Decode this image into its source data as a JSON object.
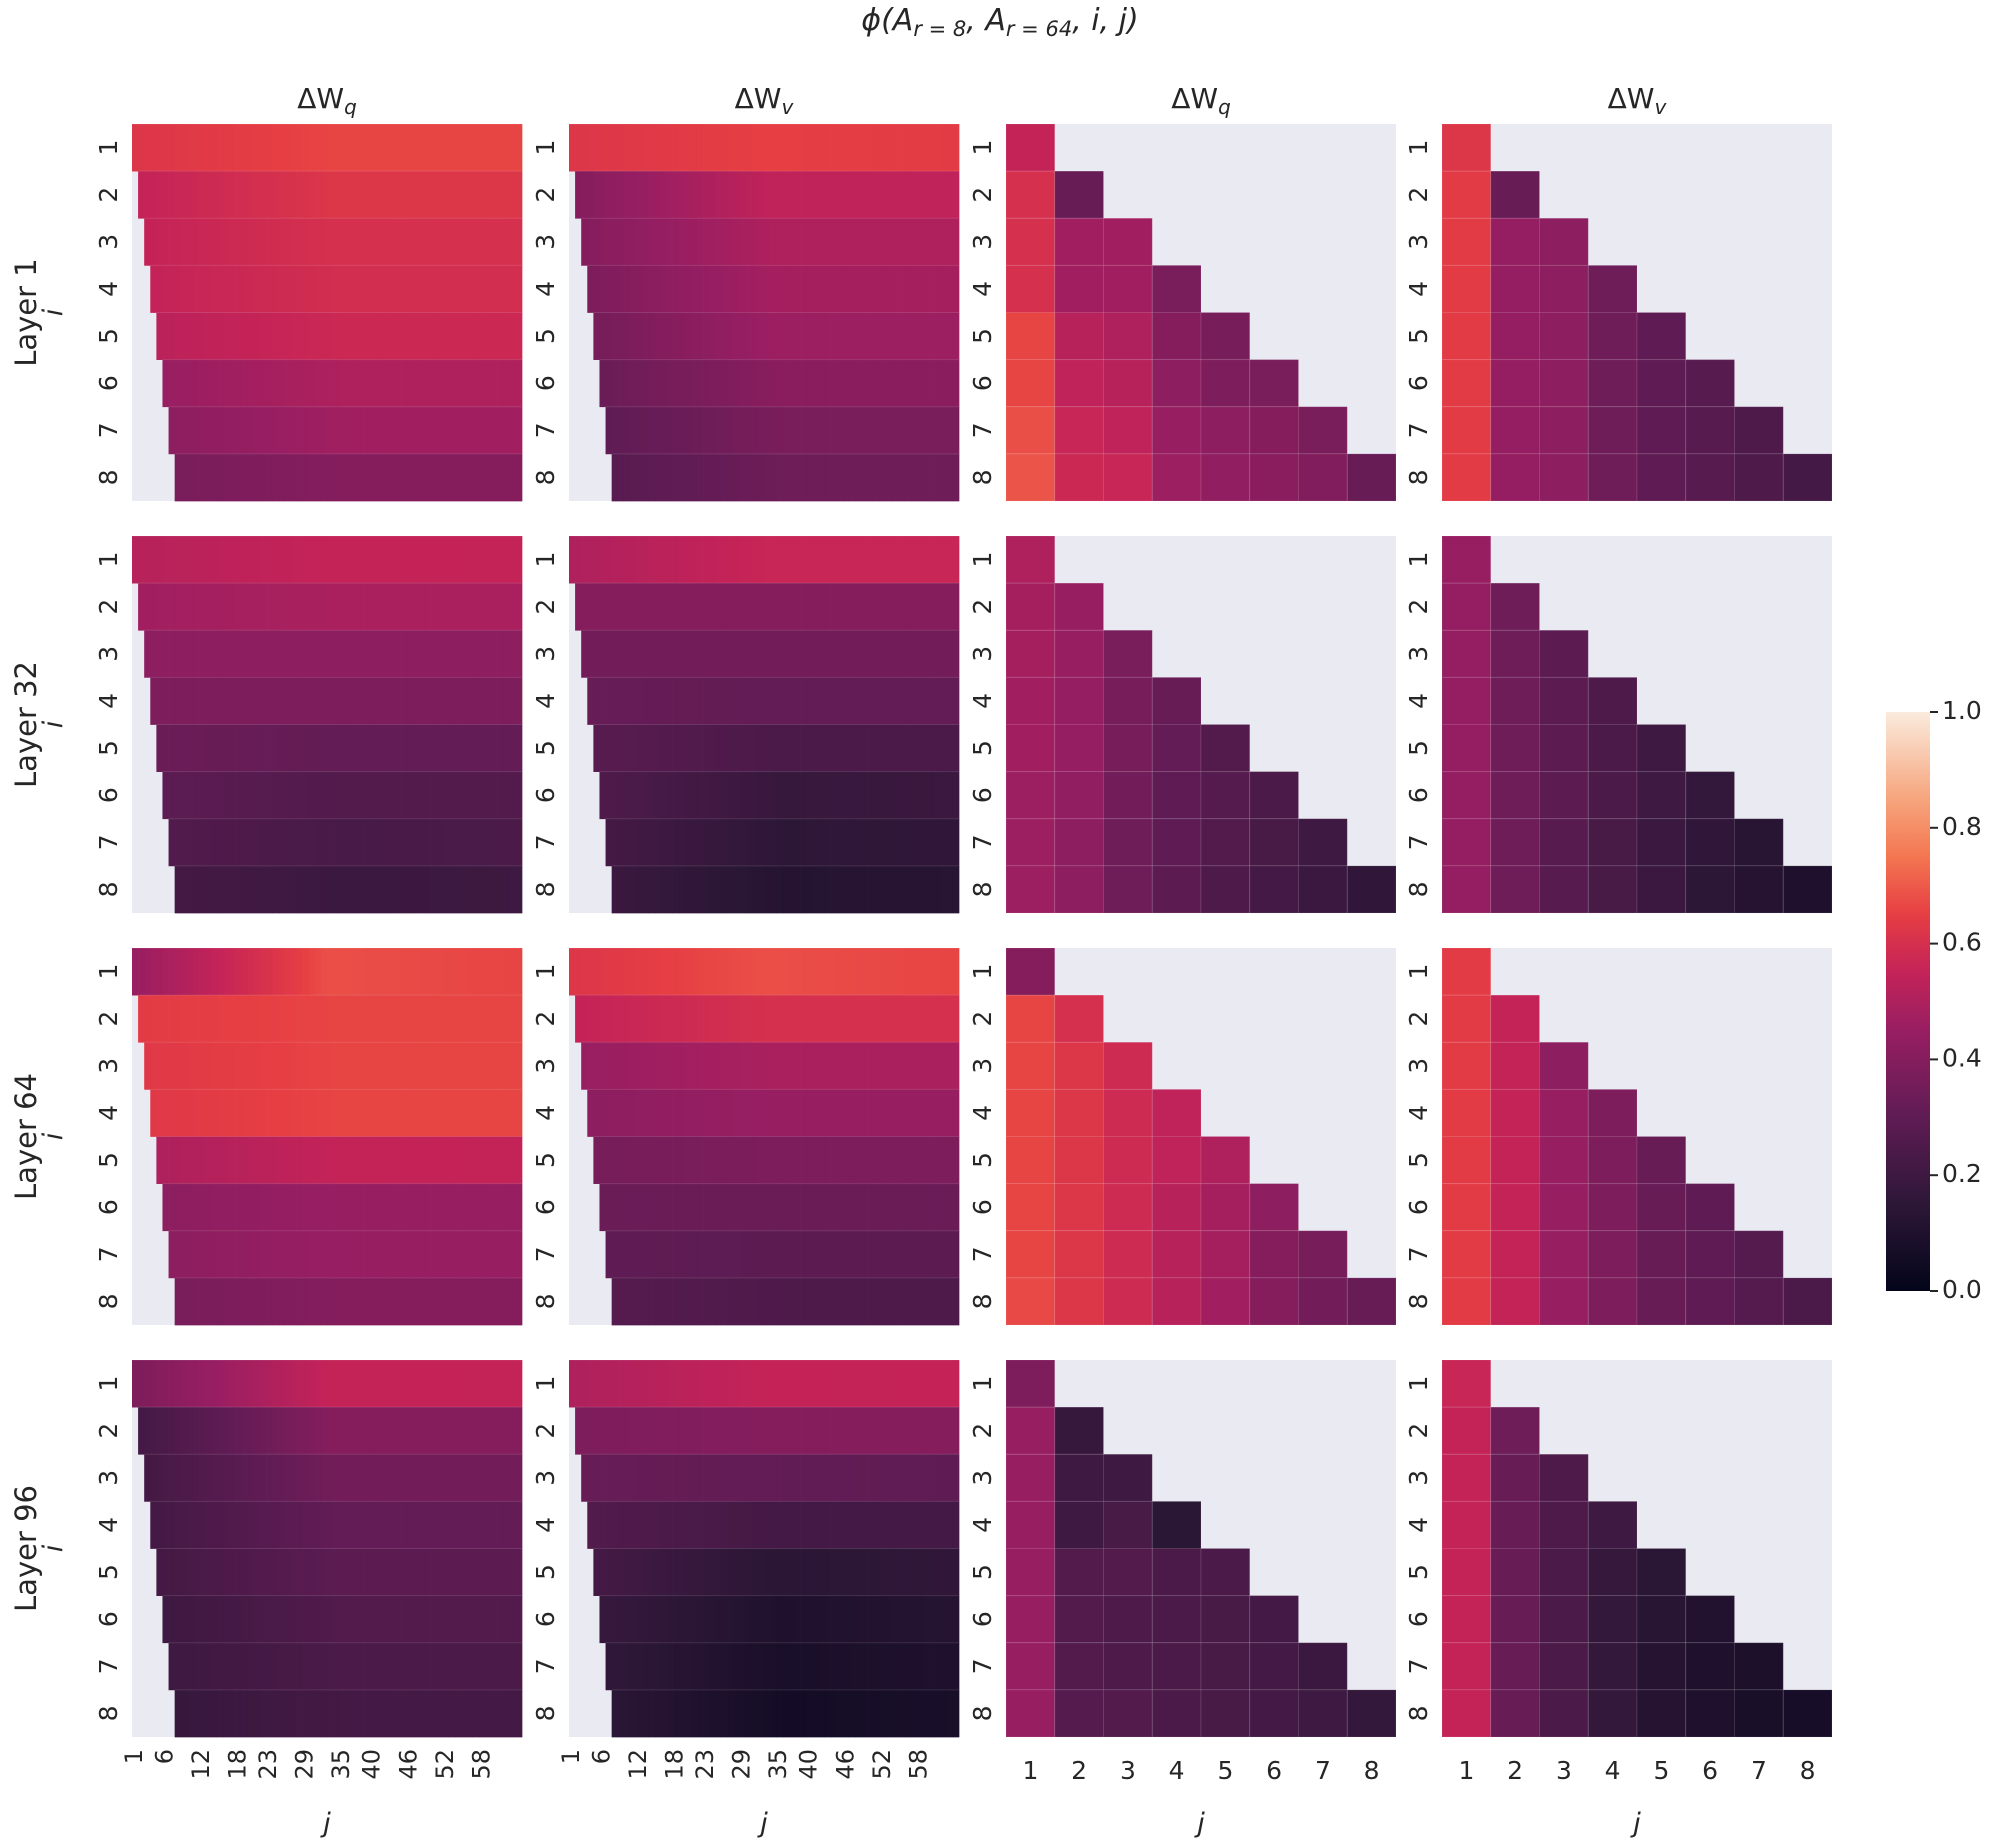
{
  "figure": {
    "title": "ϕ(A_{r=8}, A_{r=64}, i, j)",
    "row_labels": [
      "Layer 1",
      "Layer 32",
      "Layer 64",
      "Layer 96"
    ],
    "column_titles": [
      "ΔW_q",
      "ΔW_v",
      "ΔW_q",
      "ΔW_v"
    ],
    "ylabel": "i",
    "xlabel": "j",
    "colorbar": {
      "ticks": [
        0.0,
        0.2,
        0.4,
        0.6,
        0.8,
        1.0
      ],
      "tick_labels": [
        "0.0",
        "0.2",
        "0.4",
        "0.6",
        "0.8",
        "1.0"
      ],
      "range": [
        0,
        1
      ],
      "colormap": "rocket"
    },
    "background_color": "#eaeaf2",
    "left_columns_x_ticks": [
      "1",
      "6",
      "12",
      "18",
      "23",
      "29",
      "35",
      "40",
      "46",
      "52",
      "58"
    ],
    "right_columns_x_ticks": [
      "1",
      "2",
      "3",
      "4",
      "5",
      "6",
      "7",
      "8"
    ],
    "y_ticks": [
      "1",
      "2",
      "3",
      "4",
      "5",
      "6",
      "7",
      "8"
    ]
  },
  "chart_data": {
    "type": "heatmap",
    "description_rows": "i = 1..8",
    "left_columns": {
      "x_range": [
        1,
        64
      ],
      "mask": "j < i masked (lower-left triangle blank)",
      "row_values_left_edge_to_right_edge": {
        "layer_1": {
          "dWq": [
            [
              0.62,
              0.66,
              0.66
            ],
            [
              0.55,
              0.62,
              0.62
            ],
            [
              0.55,
              0.6,
              0.6
            ],
            [
              0.55,
              0.59,
              0.59
            ],
            [
              0.53,
              0.57,
              0.57
            ],
            [
              0.45,
              0.5,
              0.5
            ],
            [
              0.42,
              0.47,
              0.47
            ],
            [
              0.37,
              0.4,
              0.4
            ]
          ],
          "dWv": [
            [
              0.62,
              0.65,
              0.64
            ],
            [
              0.4,
              0.54,
              0.54
            ],
            [
              0.4,
              0.5,
              0.5
            ],
            [
              0.38,
              0.48,
              0.48
            ],
            [
              0.36,
              0.46,
              0.46
            ],
            [
              0.33,
              0.41,
              0.41
            ],
            [
              0.3,
              0.37,
              0.37
            ],
            [
              0.28,
              0.34,
              0.34
            ]
          ]
        },
        "layer_32": {
          "dWq": [
            [
              0.52,
              0.55,
              0.55
            ],
            [
              0.47,
              0.49,
              0.49
            ],
            [
              0.42,
              0.42,
              0.42
            ],
            [
              0.38,
              0.38,
              0.38
            ],
            [
              0.33,
              0.31,
              0.31
            ],
            [
              0.29,
              0.26,
              0.26
            ],
            [
              0.26,
              0.23,
              0.24
            ],
            [
              0.22,
              0.19,
              0.2
            ]
          ],
          "dWv": [
            [
              0.5,
              0.56,
              0.56
            ],
            [
              0.4,
              0.4,
              0.4
            ],
            [
              0.35,
              0.35,
              0.35
            ],
            [
              0.32,
              0.31,
              0.31
            ],
            [
              0.28,
              0.24,
              0.24
            ],
            [
              0.25,
              0.18,
              0.19
            ],
            [
              0.22,
              0.15,
              0.16
            ],
            [
              0.19,
              0.12,
              0.13
            ]
          ]
        },
        "layer_64": {
          "dWq": [
            [
              0.45,
              0.68,
              0.66
            ],
            [
              0.64,
              0.66,
              0.66
            ],
            [
              0.63,
              0.66,
              0.66
            ],
            [
              0.63,
              0.66,
              0.66
            ],
            [
              0.5,
              0.55,
              0.55
            ],
            [
              0.42,
              0.45,
              0.45
            ],
            [
              0.42,
              0.45,
              0.45
            ],
            [
              0.37,
              0.4,
              0.4
            ]
          ],
          "dWv": [
            [
              0.62,
              0.68,
              0.66
            ],
            [
              0.55,
              0.6,
              0.6
            ],
            [
              0.45,
              0.49,
              0.49
            ],
            [
              0.42,
              0.45,
              0.45
            ],
            [
              0.36,
              0.38,
              0.38
            ],
            [
              0.33,
              0.33,
              0.33
            ],
            [
              0.3,
              0.29,
              0.29
            ],
            [
              0.27,
              0.25,
              0.25
            ]
          ]
        },
        "layer_96": {
          "dWq": [
            [
              0.38,
              0.55,
              0.55
            ],
            [
              0.22,
              0.4,
              0.4
            ],
            [
              0.22,
              0.35,
              0.35
            ],
            [
              0.22,
              0.31,
              0.31
            ],
            [
              0.22,
              0.29,
              0.29
            ],
            [
              0.2,
              0.26,
              0.26
            ],
            [
              0.2,
              0.24,
              0.24
            ],
            [
              0.18,
              0.22,
              0.22
            ]
          ],
          "dWv": [
            [
              0.5,
              0.55,
              0.55
            ],
            [
              0.38,
              0.4,
              0.4
            ],
            [
              0.32,
              0.31,
              0.3
            ],
            [
              0.26,
              0.22,
              0.22
            ],
            [
              0.22,
              0.14,
              0.16
            ],
            [
              0.18,
              0.1,
              0.12
            ],
            [
              0.16,
              0.08,
              0.1
            ],
            [
              0.14,
              0.06,
              0.08
            ]
          ]
        }
      }
    },
    "right_columns": {
      "x_range": [
        1,
        8
      ],
      "mask": "j > i masked (upper-right triangle blank)",
      "lower_triangular_values": {
        "layer_1": {
          "dWq": [
            [
              0.55
            ],
            [
              0.6,
              0.32
            ],
            [
              0.6,
              0.47,
              0.47
            ],
            [
              0.6,
              0.47,
              0.47,
              0.37
            ],
            [
              0.66,
              0.52,
              0.5,
              0.4,
              0.36
            ],
            [
              0.66,
              0.54,
              0.52,
              0.42,
              0.38,
              0.37
            ],
            [
              0.68,
              0.56,
              0.54,
              0.45,
              0.42,
              0.4,
              0.37
            ],
            [
              0.69,
              0.57,
              0.56,
              0.46,
              0.43,
              0.41,
              0.39,
              0.32
            ]
          ],
          "dWv": [
            [
              0.62
            ],
            [
              0.64,
              0.32
            ],
            [
              0.64,
              0.44,
              0.42
            ],
            [
              0.64,
              0.44,
              0.42,
              0.34
            ],
            [
              0.64,
              0.44,
              0.42,
              0.34,
              0.3
            ],
            [
              0.64,
              0.44,
              0.42,
              0.34,
              0.3,
              0.28
            ],
            [
              0.64,
              0.44,
              0.42,
              0.34,
              0.3,
              0.28,
              0.25
            ],
            [
              0.64,
              0.44,
              0.42,
              0.34,
              0.3,
              0.28,
              0.25,
              0.22
            ]
          ]
        },
        "layer_32": {
          "dWq": [
            [
              0.5
            ],
            [
              0.48,
              0.45
            ],
            [
              0.48,
              0.45,
              0.37
            ],
            [
              0.47,
              0.44,
              0.36,
              0.32
            ],
            [
              0.47,
              0.44,
              0.36,
              0.31,
              0.26
            ],
            [
              0.46,
              0.43,
              0.35,
              0.3,
              0.27,
              0.24
            ],
            [
              0.46,
              0.42,
              0.34,
              0.3,
              0.26,
              0.23,
              0.2
            ],
            [
              0.46,
              0.42,
              0.34,
              0.29,
              0.25,
              0.22,
              0.19,
              0.16
            ]
          ],
          "dWv": [
            [
              0.45
            ],
            [
              0.44,
              0.34
            ],
            [
              0.44,
              0.34,
              0.29
            ],
            [
              0.44,
              0.34,
              0.29,
              0.25
            ],
            [
              0.44,
              0.34,
              0.29,
              0.24,
              0.2
            ],
            [
              0.44,
              0.34,
              0.29,
              0.24,
              0.2,
              0.17
            ],
            [
              0.44,
              0.34,
              0.28,
              0.23,
              0.19,
              0.16,
              0.13
            ],
            [
              0.44,
              0.34,
              0.28,
              0.23,
              0.19,
              0.15,
              0.12,
              0.1
            ]
          ]
        },
        "layer_64": {
          "dWq": [
            [
              0.4
            ],
            [
              0.66,
              0.6
            ],
            [
              0.66,
              0.62,
              0.58
            ],
            [
              0.66,
              0.62,
              0.58,
              0.54
            ],
            [
              0.66,
              0.62,
              0.58,
              0.54,
              0.5
            ],
            [
              0.66,
              0.62,
              0.58,
              0.52,
              0.48,
              0.42
            ],
            [
              0.66,
              0.62,
              0.58,
              0.52,
              0.48,
              0.4,
              0.36
            ],
            [
              0.67,
              0.62,
              0.58,
              0.52,
              0.47,
              0.4,
              0.35,
              0.32
            ]
          ],
          "dWv": [
            [
              0.64
            ],
            [
              0.64,
              0.55
            ],
            [
              0.64,
              0.55,
              0.42
            ],
            [
              0.64,
              0.55,
              0.45,
              0.38
            ],
            [
              0.64,
              0.55,
              0.45,
              0.38,
              0.32
            ],
            [
              0.64,
              0.55,
              0.45,
              0.38,
              0.32,
              0.3
            ],
            [
              0.64,
              0.55,
              0.45,
              0.38,
              0.32,
              0.3,
              0.27
            ],
            [
              0.64,
              0.55,
              0.45,
              0.38,
              0.32,
              0.3,
              0.27,
              0.24
            ]
          ]
        },
        "layer_96": {
          "dWq": [
            [
              0.38
            ],
            [
              0.45,
              0.18
            ],
            [
              0.45,
              0.2,
              0.2
            ],
            [
              0.45,
              0.2,
              0.23,
              0.14
            ],
            [
              0.45,
              0.26,
              0.26,
              0.24,
              0.24
            ],
            [
              0.45,
              0.26,
              0.25,
              0.24,
              0.23,
              0.22
            ],
            [
              0.45,
              0.26,
              0.25,
              0.24,
              0.23,
              0.22,
              0.19
            ],
            [
              0.45,
              0.27,
              0.26,
              0.24,
              0.23,
              0.22,
              0.2,
              0.17
            ]
          ],
          "dWv": [
            [
              0.56
            ],
            [
              0.55,
              0.34
            ],
            [
              0.55,
              0.32,
              0.25
            ],
            [
              0.55,
              0.32,
              0.25,
              0.2
            ],
            [
              0.55,
              0.32,
              0.24,
              0.18,
              0.14
            ],
            [
              0.55,
              0.32,
              0.24,
              0.17,
              0.13,
              0.11
            ],
            [
              0.55,
              0.32,
              0.24,
              0.17,
              0.12,
              0.1,
              0.09
            ],
            [
              0.55,
              0.32,
              0.24,
              0.17,
              0.12,
              0.1,
              0.08,
              0.07
            ]
          ]
        }
      }
    }
  }
}
